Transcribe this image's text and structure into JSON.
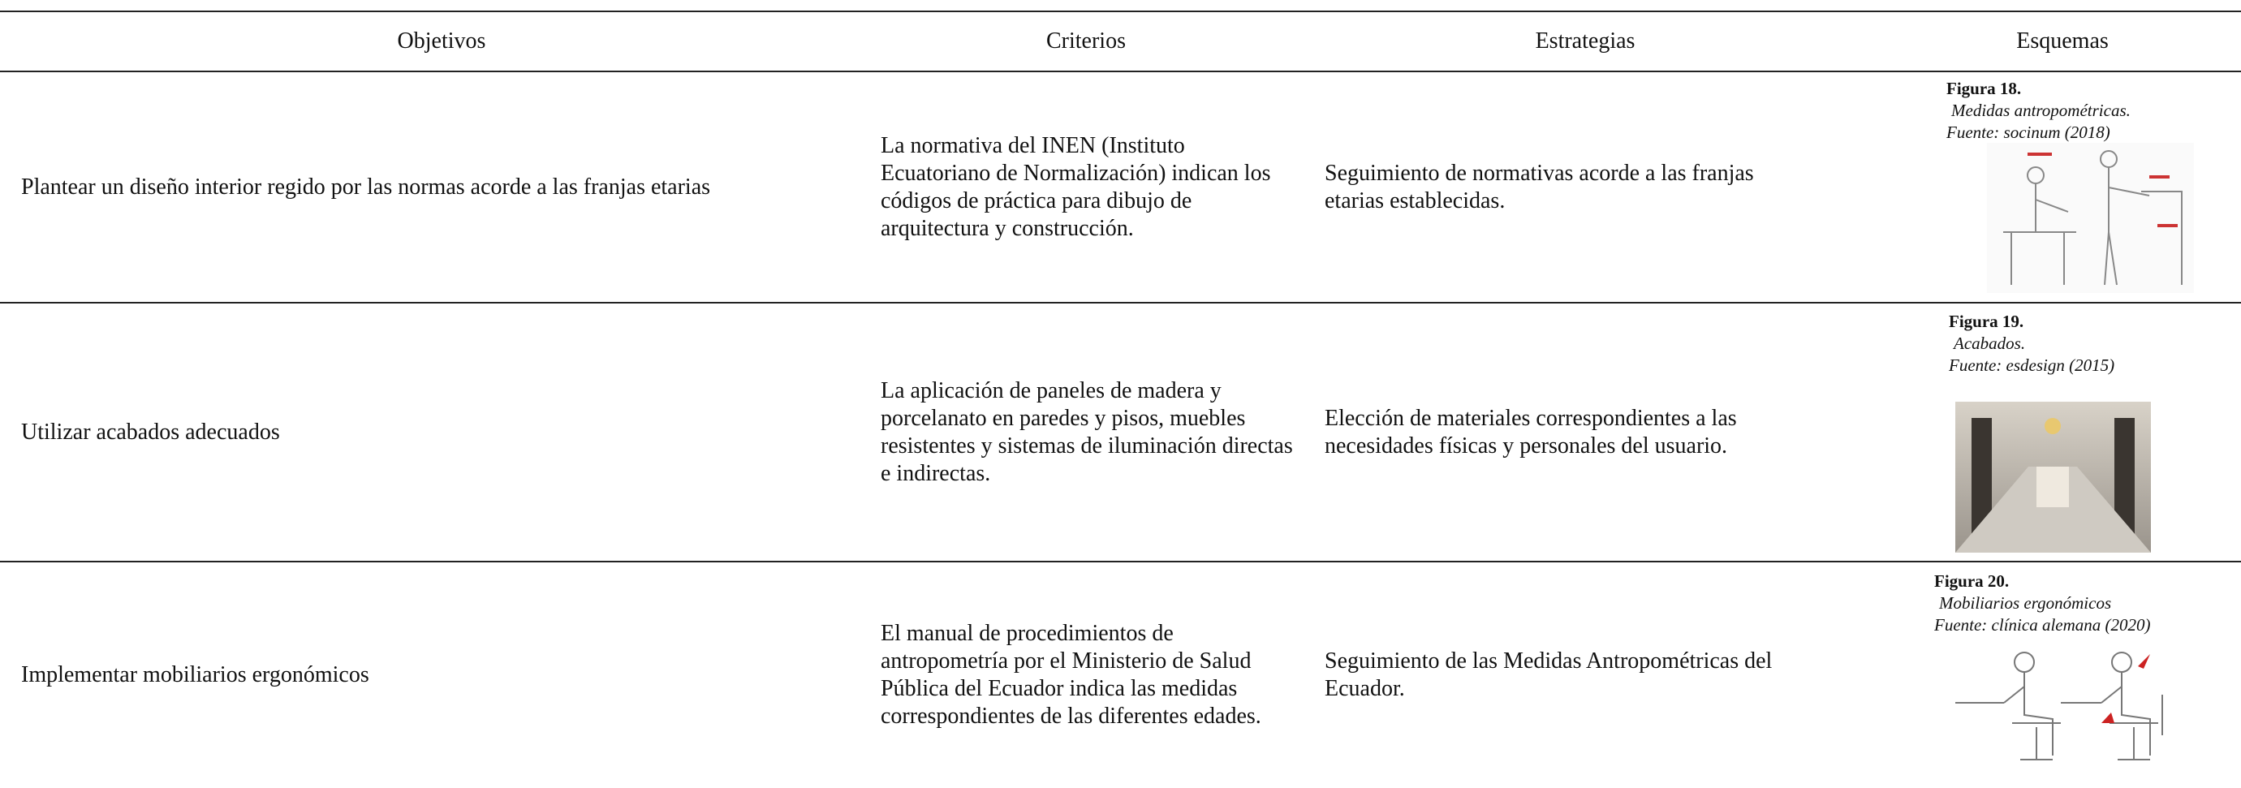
{
  "table": {
    "header": [
      "Objetivos",
      "Criterios",
      "Estrategias",
      "Esquemas"
    ],
    "rows": [
      {
        "objective": "Plantear un diseño interior regido por las normas acorde a las franjas etarias",
        "criterion": "La normativa del INEN (Instituto Ecuatoriano de Normalización) indican los códigos de práctica para dibujo de arquitectura y construcción.",
        "strategy": "Seguimiento de normativas acorde a las franjas etarias establecidas.",
        "figure": {
          "label": "Figura 18.",
          "caption": "Medidas antropométricas.",
          "source": "Fuente: socinum (2018)"
        }
      },
      {
        "objective": "Utilizar acabados adecuados",
        "criterion": "La aplicación de paneles de madera y porcelanato en paredes y pisos, muebles resistentes y sistemas de iluminación directas e indirectas.",
        "strategy": "Elección de materiales correspondientes a las necesidades físicas y personales del usuario.",
        "figure": {
          "label": "Figura 19.",
          "caption": "Acabados.",
          "source": "Fuente: esdesign (2015)"
        }
      },
      {
        "objective": "Implementar mobiliarios ergonómicos",
        "criterion": "El manual de procedimientos de antropometría por el Ministerio de Salud Pública del Ecuador indica las medidas correspondientes de las diferentes edades.",
        "strategy": "Seguimiento de las Medidas Antropométricas del Ecuador.",
        "figure": {
          "label": "Figura 20.",
          "caption": "Mobiliarios ergonómicos",
          "source": "Fuente: clínica alemana (2020)"
        }
      }
    ]
  }
}
